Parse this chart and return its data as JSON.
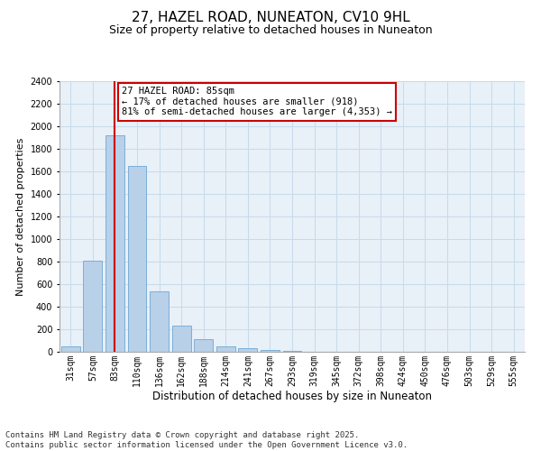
{
  "title": "27, HAZEL ROAD, NUNEATON, CV10 9HL",
  "subtitle": "Size of property relative to detached houses in Nuneaton",
  "xlabel": "Distribution of detached houses by size in Nuneaton",
  "ylabel": "Number of detached properties",
  "bar_values": [
    50,
    810,
    1920,
    1650,
    540,
    235,
    115,
    50,
    30,
    15,
    5,
    0,
    0,
    0,
    0,
    0,
    0,
    0,
    0,
    0,
    0
  ],
  "categories": [
    "31sqm",
    "57sqm",
    "83sqm",
    "110sqm",
    "136sqm",
    "162sqm",
    "188sqm",
    "214sqm",
    "241sqm",
    "267sqm",
    "293sqm",
    "319sqm",
    "345sqm",
    "372sqm",
    "398sqm",
    "424sqm",
    "450sqm",
    "476sqm",
    "503sqm",
    "529sqm",
    "555sqm"
  ],
  "bar_color": "#b8d0e8",
  "bar_edge_color": "#6ea8d5",
  "vline_color": "#cc0000",
  "vline_x": 2,
  "annotation_line1": "27 HAZEL ROAD: 85sqm",
  "annotation_line2": "← 17% of detached houses are smaller (918)",
  "annotation_line3": "81% of semi-detached houses are larger (4,353) →",
  "annotation_box_color": "#ffffff",
  "annotation_box_edge_color": "#cc0000",
  "ylim": [
    0,
    2400
  ],
  "grid_color": "#c8daea",
  "bg_color": "#e8f0f8",
  "footer_line1": "Contains HM Land Registry data © Crown copyright and database right 2025.",
  "footer_line2": "Contains public sector information licensed under the Open Government Licence v3.0.",
  "title_fontsize": 11,
  "subtitle_fontsize": 9,
  "annotation_fontsize": 7.5,
  "ylabel_fontsize": 8,
  "xlabel_fontsize": 8.5,
  "footer_fontsize": 6.5,
  "tick_fontsize": 7
}
